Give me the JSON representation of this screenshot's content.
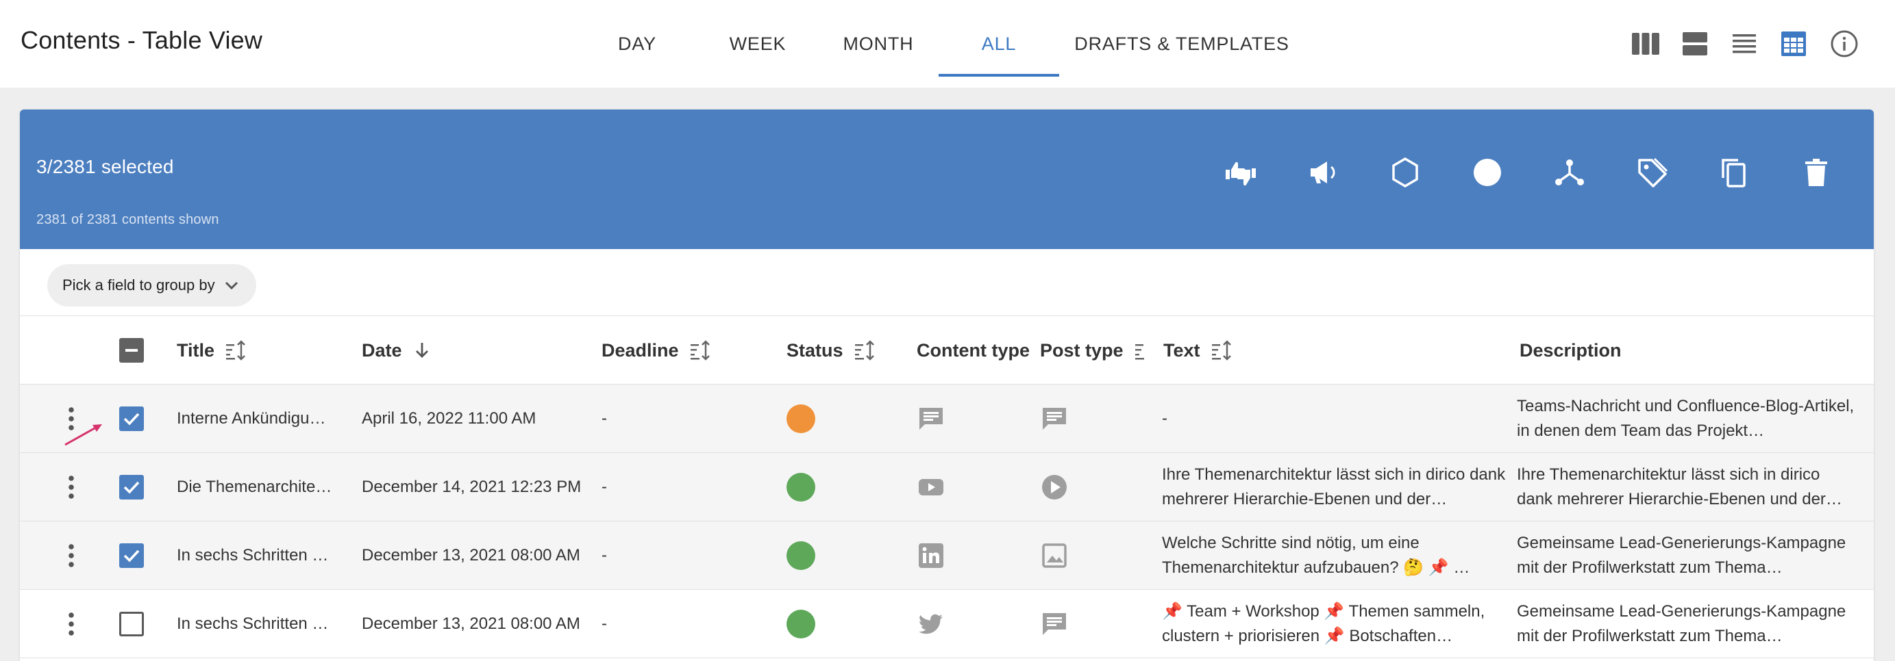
{
  "header": {
    "title": "Contents - Table View",
    "tabs": [
      {
        "label": "DAY"
      },
      {
        "label": "WEEK"
      },
      {
        "label": "MONTH"
      },
      {
        "label": "ALL"
      },
      {
        "label": "DRAFTS & TEMPLATES"
      }
    ],
    "active_tab": "ALL",
    "view_icons": [
      "columns-view-icon",
      "rows-view-icon",
      "list-view-icon",
      "table-view-icon",
      "info-icon"
    ]
  },
  "selection": {
    "count_label": "3/2381 selected",
    "shown_label": "2381 of 2381 contents shown",
    "actions": [
      "thumbs-up-down-icon",
      "megaphone-icon",
      "hexagon-icon",
      "circle-icon",
      "hierarchy-icon",
      "tags-icon",
      "copy-icon",
      "delete-icon"
    ]
  },
  "group_by": {
    "label": "Pick a field to group by"
  },
  "table": {
    "columns": {
      "title": "Title",
      "date": "Date",
      "deadline": "Deadline",
      "status": "Status",
      "content_type": "Content type",
      "post_type": "Post type",
      "text": "Text",
      "description": "Description"
    },
    "rows": [
      {
        "checked": true,
        "title": "Interne Ankündigu…",
        "date": "April 16, 2022 11:00 AM",
        "deadline": "-",
        "status_color": "#f0923a",
        "content_type_icon": "message-icon",
        "post_type_icon": "message-icon",
        "text": "-",
        "description": "Teams-Nachricht und Confluence-Blog-Artikel, in denen dem Team das Projekt…"
      },
      {
        "checked": true,
        "title": "Die Themenarchite…",
        "date": "December 14, 2021 12:23 PM",
        "deadline": "-",
        "status_color": "#5ea85a",
        "content_type_icon": "youtube-icon",
        "post_type_icon": "play-icon",
        "text": "Ihre Themenarchitektur lässt sich in dirico dank mehrerer Hierarchie-Ebenen und der…",
        "description": "Ihre Themenarchitektur lässt sich in dirico dank mehrerer Hierarchie-Ebenen und der…"
      },
      {
        "checked": true,
        "title": "In sechs Schritten …",
        "date": "December 13, 2021 08:00 AM",
        "deadline": "-",
        "status_color": "#5ea85a",
        "content_type_icon": "linkedin-icon",
        "post_type_icon": "image-icon",
        "text": "Welche Schritte sind nötig, um eine Themenarchitektur aufzubauen? 🤔 📌 …",
        "description": "Gemeinsame Lead-Generierungs-Kampagne mit der Profilwerkstatt zum Thema…"
      },
      {
        "checked": false,
        "title": "In sechs Schritten …",
        "date": "December 13, 2021 08:00 AM",
        "deadline": "-",
        "status_color": "#5ea85a",
        "content_type_icon": "twitter-icon",
        "post_type_icon": "message-icon",
        "text": "📌 Team + Workshop 📌 Themen sammeln, clustern + priorisieren 📌 Botschaften…",
        "description": "Gemeinsame Lead-Generierungs-Kampagne mit der Profilwerkstatt zum Thema…"
      }
    ]
  },
  "colors": {
    "accent": "#3d78c2",
    "selection_bar": "#4c7fc0",
    "status_orange": "#f0923a",
    "status_green": "#5ea85a",
    "annotation_arrow": "#d6336c"
  }
}
